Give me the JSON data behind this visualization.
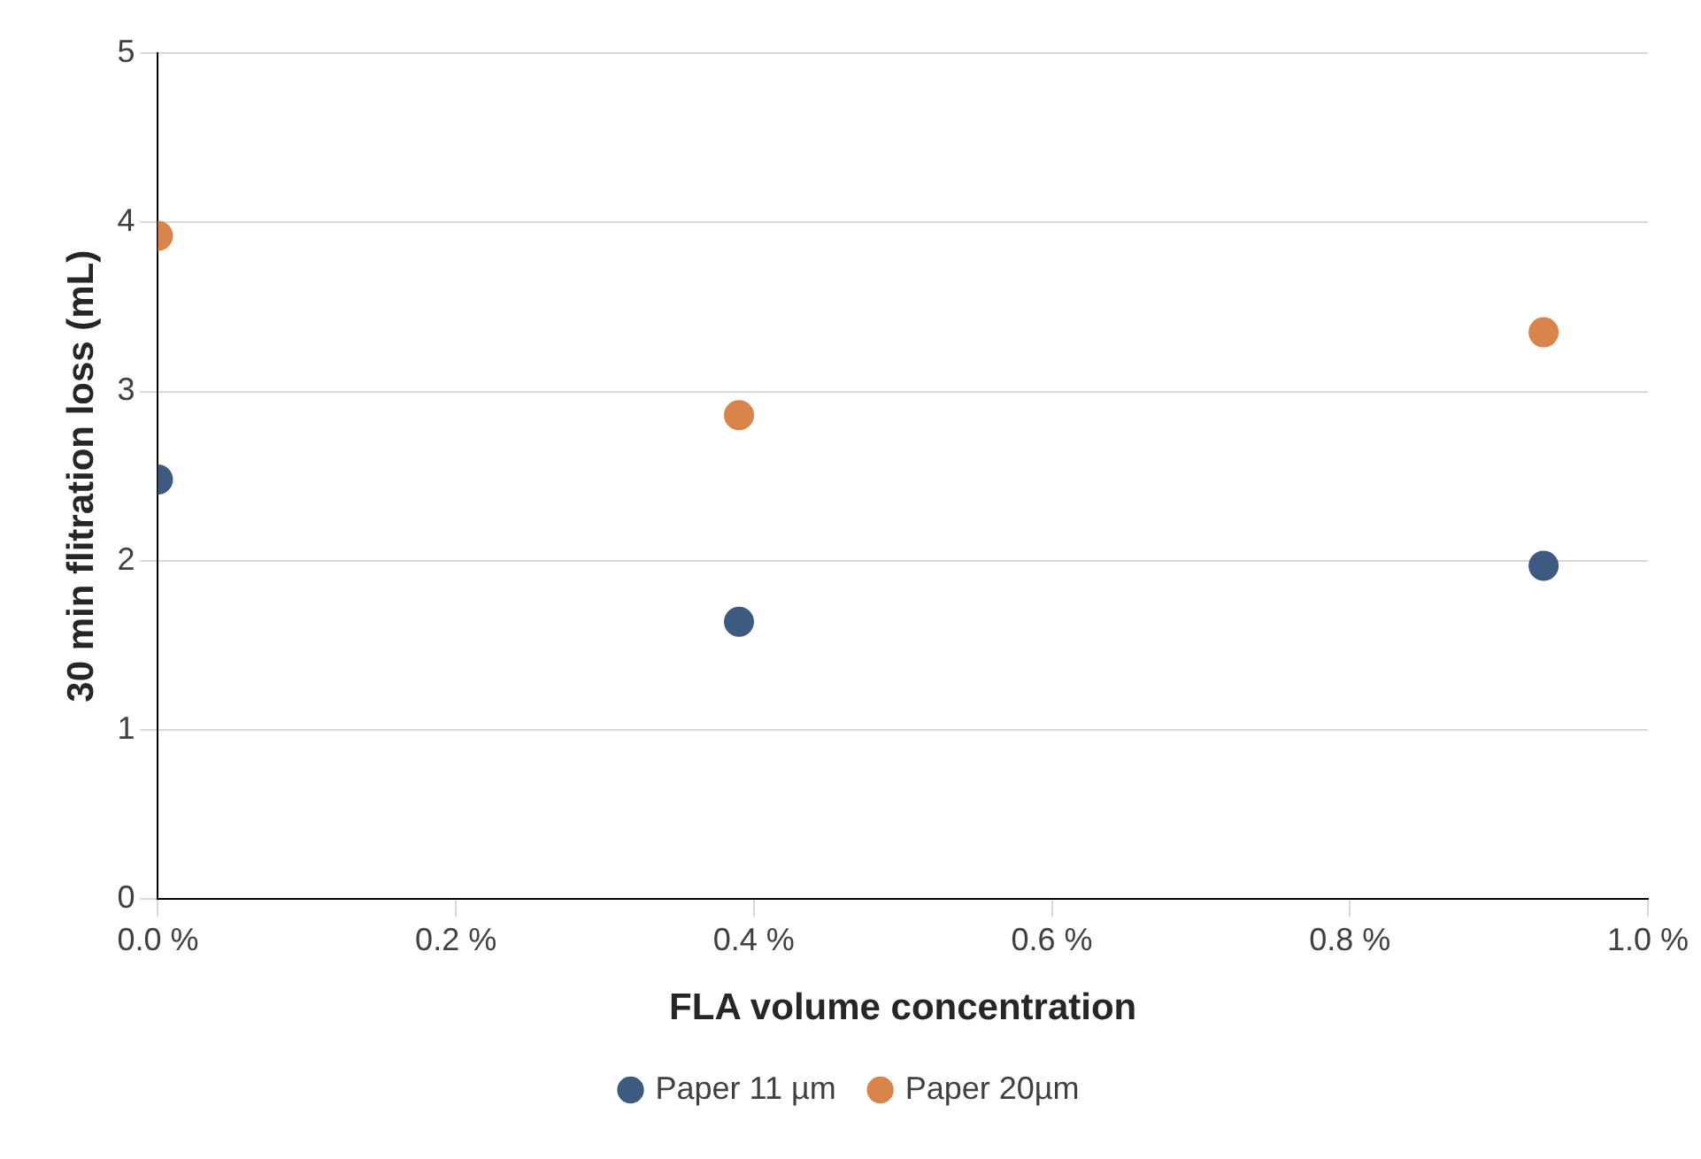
{
  "chart_data": {
    "type": "scatter",
    "xlabel": "FLA volume concentration",
    "ylabel": "30 min flitration loss (mL)",
    "series": [
      {
        "name": "Paper 11 µm",
        "color": "#3d5a80",
        "x": [
          0,
          0.39,
          0.93
        ],
        "values": [
          2.48,
          1.64,
          1.97
        ]
      },
      {
        "name": "Paper 20µm",
        "color": "#d9844a",
        "x": [
          0,
          0.39,
          0.93
        ],
        "values": [
          3.92,
          2.86,
          3.35
        ]
      }
    ],
    "xlim": [
      0,
      1
    ],
    "xticks": [
      {
        "value": 0,
        "label": "0.0 %"
      },
      {
        "value": 0.2,
        "label": "0.2 %"
      },
      {
        "value": 0.4,
        "label": "0.4 %"
      },
      {
        "value": 0.6,
        "label": "0.6 %"
      },
      {
        "value": 0.8,
        "label": "0.8 %"
      },
      {
        "value": 1,
        "label": "1.0 %"
      }
    ],
    "ylim": [
      0,
      5
    ],
    "yticks": [
      0,
      1,
      2,
      3,
      4,
      5
    ],
    "grid": "y",
    "legend": "bottom",
    "marker": "circle"
  }
}
